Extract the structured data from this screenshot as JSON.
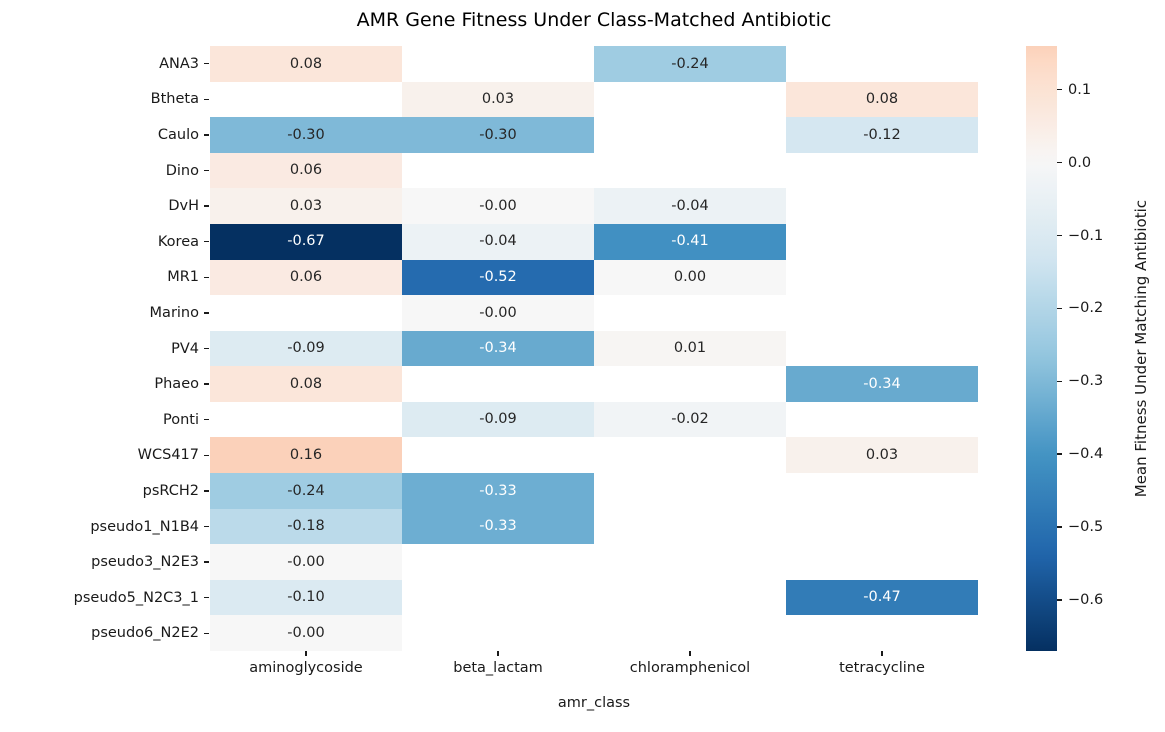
{
  "chart_data": {
    "type": "heatmap",
    "title": "AMR Gene Fitness Under Class-Matched Antibiotic",
    "xlabel": "amr_class",
    "ylabel": "",
    "columns": [
      "aminoglycoside",
      "beta_lactam",
      "chloramphenicol",
      "tetracycline"
    ],
    "rows": [
      "ANA3",
      "Btheta",
      "Caulo",
      "Dino",
      "DvH",
      "Korea",
      "MR1",
      "Marino",
      "PV4",
      "Phaeo",
      "Ponti",
      "WCS417",
      "psRCH2",
      "pseudo1_N1B4",
      "pseudo3_N2E3",
      "pseudo5_N2C3_1",
      "pseudo6_N2E2"
    ],
    "values": [
      [
        0.08,
        null,
        -0.24,
        null
      ],
      [
        null,
        0.03,
        null,
        0.08
      ],
      [
        -0.3,
        -0.3,
        null,
        -0.12
      ],
      [
        0.06,
        null,
        null,
        null
      ],
      [
        0.03,
        -0.0,
        -0.04,
        null
      ],
      [
        -0.67,
        -0.04,
        -0.41,
        null
      ],
      [
        0.06,
        -0.52,
        0.0,
        null
      ],
      [
        null,
        -0.0,
        null,
        null
      ],
      [
        -0.09,
        -0.34,
        0.01,
        null
      ],
      [
        0.08,
        null,
        null,
        -0.34
      ],
      [
        null,
        -0.09,
        -0.02,
        null
      ],
      [
        0.16,
        null,
        null,
        0.03
      ],
      [
        -0.24,
        -0.33,
        null,
        null
      ],
      [
        -0.18,
        -0.33,
        null,
        null
      ],
      [
        -0.0,
        null,
        null,
        null
      ],
      [
        -0.1,
        null,
        null,
        -0.47
      ],
      [
        -0.0,
        null,
        null,
        null
      ]
    ],
    "cell_labels": [
      [
        "0.08",
        "",
        "-0.24",
        ""
      ],
      [
        "",
        "0.03",
        "",
        "0.08"
      ],
      [
        "-0.30",
        "-0.30",
        "",
        "-0.12"
      ],
      [
        "0.06",
        "",
        "",
        ""
      ],
      [
        "0.03",
        "-0.00",
        "-0.04",
        ""
      ],
      [
        "-0.67",
        "-0.04",
        "-0.41",
        ""
      ],
      [
        "0.06",
        "-0.52",
        "0.00",
        ""
      ],
      [
        "",
        "-0.00",
        "",
        ""
      ],
      [
        "-0.09",
        "-0.34",
        "0.01",
        ""
      ],
      [
        "0.08",
        "",
        "",
        "-0.34"
      ],
      [
        "",
        "-0.09",
        "-0.02",
        ""
      ],
      [
        "0.16",
        "",
        "",
        "0.03"
      ],
      [
        "-0.24",
        "-0.33",
        "",
        ""
      ],
      [
        "-0.18",
        "-0.33",
        "",
        ""
      ],
      [
        "-0.00",
        "",
        "",
        ""
      ],
      [
        "-0.10",
        "",
        "",
        "-0.47"
      ],
      [
        "-0.00",
        "",
        "",
        ""
      ]
    ],
    "colormap": {
      "name": "RdBu_r",
      "center": 0,
      "vmin": -0.67,
      "vmax": 0.16,
      "anchors": [
        "#053061",
        "#2166ac",
        "#4393c3",
        "#92c5de",
        "#d1e5f0",
        "#f7f7f7",
        "#fddbc7",
        "#f4a582",
        "#d6604d",
        "#b2182b",
        "#67001f"
      ]
    },
    "null_cell_color": "#ffffff",
    "annot_text_dark": "#262626",
    "annot_text_light": "#ffffff",
    "colorbar": {
      "label": "Mean Fitness Under Matching Antibiotic",
      "ticks": [
        {
          "value": 0.1,
          "label": "0.1"
        },
        {
          "value": 0.0,
          "label": "0.0"
        },
        {
          "value": -0.1,
          "label": "−0.1"
        },
        {
          "value": -0.2,
          "label": "−0.2"
        },
        {
          "value": -0.3,
          "label": "−0.3"
        },
        {
          "value": -0.4,
          "label": "−0.4"
        },
        {
          "value": -0.5,
          "label": "−0.5"
        },
        {
          "value": -0.6,
          "label": "−0.6"
        }
      ]
    },
    "legend_position": "right",
    "grid": false
  }
}
